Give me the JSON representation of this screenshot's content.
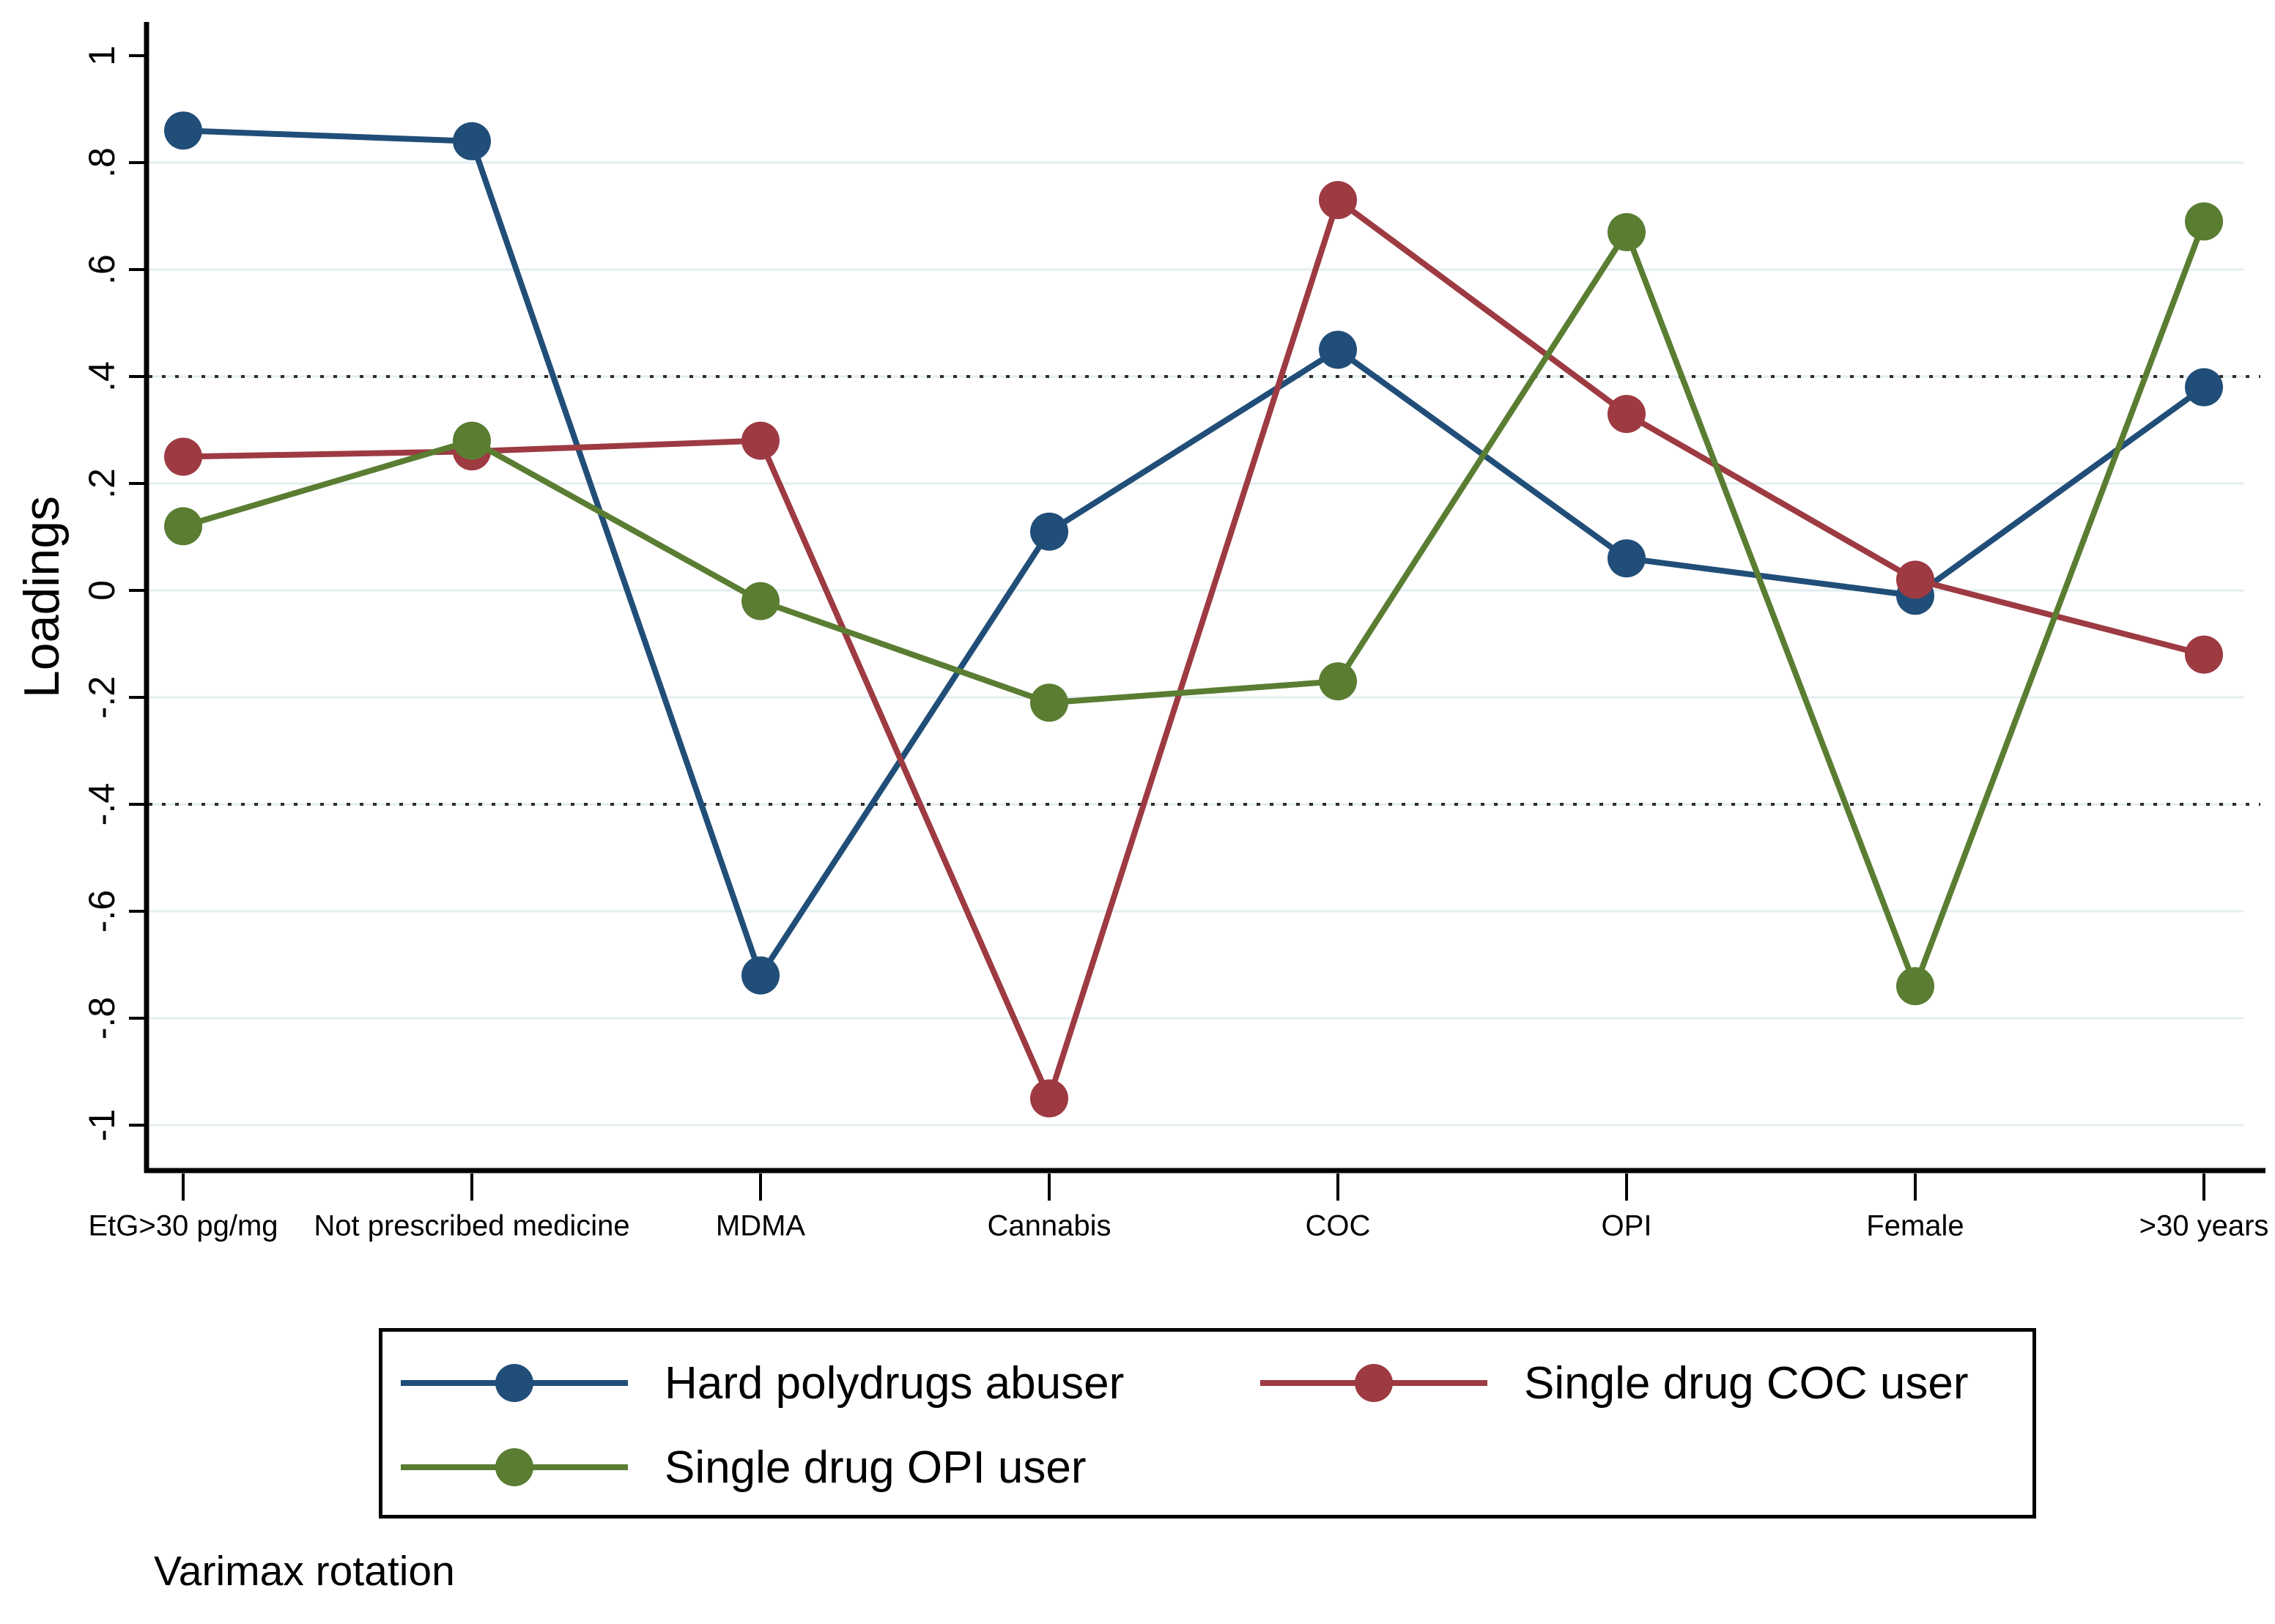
{
  "chart_data": {
    "type": "line",
    "title": "",
    "xlabel": "",
    "ylabel": "Loadings",
    "ylim": [
      -1,
      1
    ],
    "y_tick_values": [
      1,
      0.8,
      0.6,
      0.4,
      0.2,
      0,
      -0.2,
      -0.4,
      -0.6,
      -0.8,
      -1
    ],
    "y_tick_labels": [
      "1",
      ".8",
      ".6",
      ".4",
      ".2",
      "0",
      "-.2",
      "-.4",
      "-.6",
      "-.8",
      "-1"
    ],
    "grid_values": [
      0.8,
      0.6,
      0.4,
      0.2,
      0,
      -0.2,
      -0.4,
      -0.6,
      -0.8,
      -1
    ],
    "grid_on": true,
    "reference_lines": {
      "values": [
        0.4,
        -0.4
      ],
      "style": "dotted",
      "color": "#2e2e2e"
    },
    "categories": [
      "EtG>30 pg/mg",
      "Not prescribed medicine",
      "MDMA",
      "Cannabis",
      "COC",
      "OPI",
      "Female",
      ">30 years"
    ],
    "series": [
      {
        "name": "Hard polydrugs abuser",
        "color": "#204e78",
        "values": [
          0.86,
          0.84,
          -0.72,
          0.11,
          0.45,
          0.06,
          -0.01,
          0.38
        ]
      },
      {
        "name": "Single drug COC user",
        "color": "#9d3a42",
        "values": [
          0.25,
          0.26,
          0.28,
          -0.95,
          0.73,
          0.33,
          0.02,
          -0.12
        ]
      },
      {
        "name": "Single drug OPI user",
        "color": "#5a7d32",
        "values": [
          0.12,
          0.28,
          -0.02,
          -0.21,
          -0.17,
          0.67,
          -0.74,
          0.69
        ]
      }
    ],
    "legend_position": "bottom",
    "grid_color": "#e3eef0",
    "axis_color": "#000000",
    "background": "#ffffff",
    "caption": "Varimax rotation"
  }
}
